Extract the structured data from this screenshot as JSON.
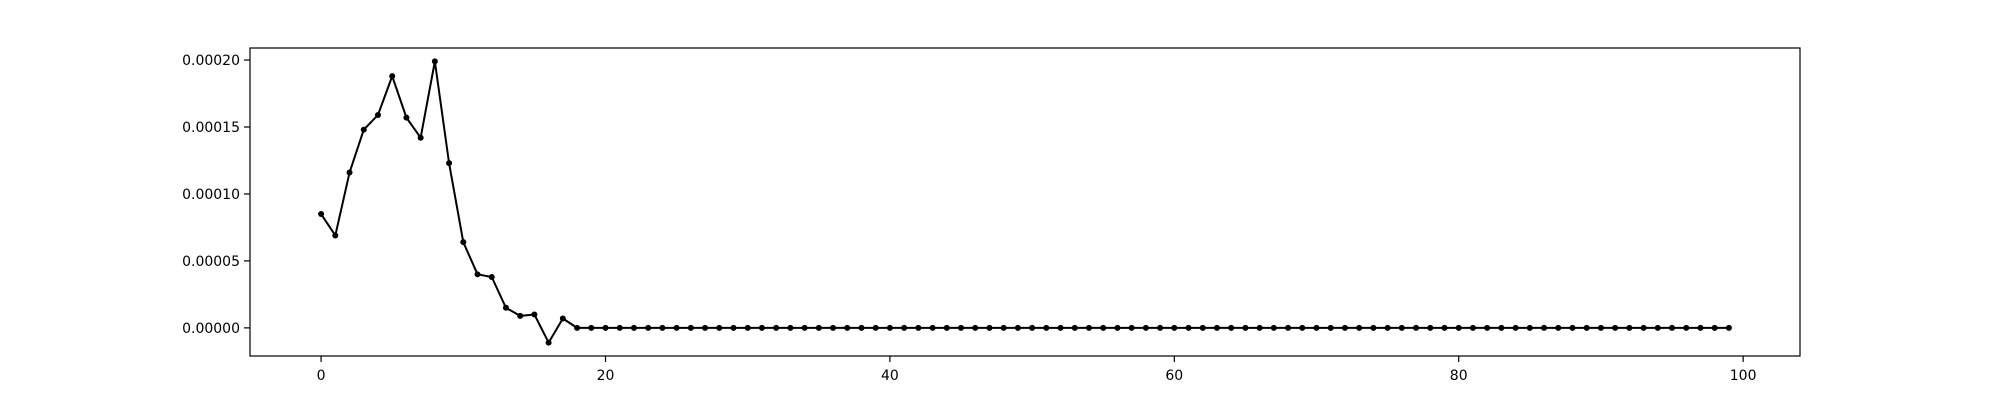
{
  "chart_data": {
    "type": "line",
    "title": "",
    "xlabel": "",
    "ylabel": "",
    "xlim": [
      -5,
      104
    ],
    "ylim": [
      -2.1e-05,
      0.000209
    ],
    "grid": false,
    "legend": "none",
    "line_color": "#000000",
    "x_ticks": [
      0,
      20,
      40,
      60,
      80,
      100
    ],
    "x_tick_labels": [
      "0",
      "20",
      "40",
      "60",
      "80",
      "100"
    ],
    "y_ticks": [
      0,
      5e-05,
      0.0001,
      0.00015,
      0.0002
    ],
    "y_tick_labels": [
      "0.00000",
      "0.00005",
      "0.00010",
      "0.00015",
      "0.00020"
    ],
    "x": [
      0,
      1,
      2,
      3,
      4,
      5,
      6,
      7,
      8,
      9,
      10,
      11,
      12,
      13,
      14,
      15,
      16,
      17,
      18,
      19,
      20,
      21,
      22,
      23,
      24,
      25,
      26,
      27,
      28,
      29,
      30,
      31,
      32,
      33,
      34,
      35,
      36,
      37,
      38,
      39,
      40,
      41,
      42,
      43,
      44,
      45,
      46,
      47,
      48,
      49,
      50,
      51,
      52,
      53,
      54,
      55,
      56,
      57,
      58,
      59,
      60,
      61,
      62,
      63,
      64,
      65,
      66,
      67,
      68,
      69,
      70,
      71,
      72,
      73,
      74,
      75,
      76,
      77,
      78,
      79,
      80,
      81,
      82,
      83,
      84,
      85,
      86,
      87,
      88,
      89,
      90,
      91,
      92,
      93,
      94,
      95,
      96,
      97,
      98,
      99
    ],
    "y": [
      8.5e-05,
      6.9e-05,
      0.000116,
      0.000148,
      0.000159,
      0.000188,
      0.000157,
      0.000142,
      0.000199,
      0.000123,
      6.4e-05,
      4e-05,
      3.8e-05,
      1.5e-05,
      9e-06,
      1e-05,
      -1.1e-05,
      7e-06,
      0,
      0,
      0,
      0,
      0,
      0,
      0,
      0,
      0,
      0,
      0,
      0,
      0,
      0,
      0,
      0,
      0,
      0,
      0,
      0,
      0,
      0,
      0,
      0,
      0,
      0,
      0,
      0,
      0,
      0,
      0,
      0,
      0,
      0,
      0,
      0,
      0,
      0,
      0,
      0,
      0,
      0,
      0,
      0,
      0,
      0,
      0,
      0,
      0,
      0,
      0,
      0,
      0,
      0,
      0,
      0,
      0,
      0,
      0,
      0,
      0,
      0,
      0,
      0,
      0,
      0,
      0,
      0,
      0,
      0,
      0,
      0,
      0,
      0,
      0,
      0,
      0,
      0,
      0,
      0,
      0,
      0
    ]
  }
}
